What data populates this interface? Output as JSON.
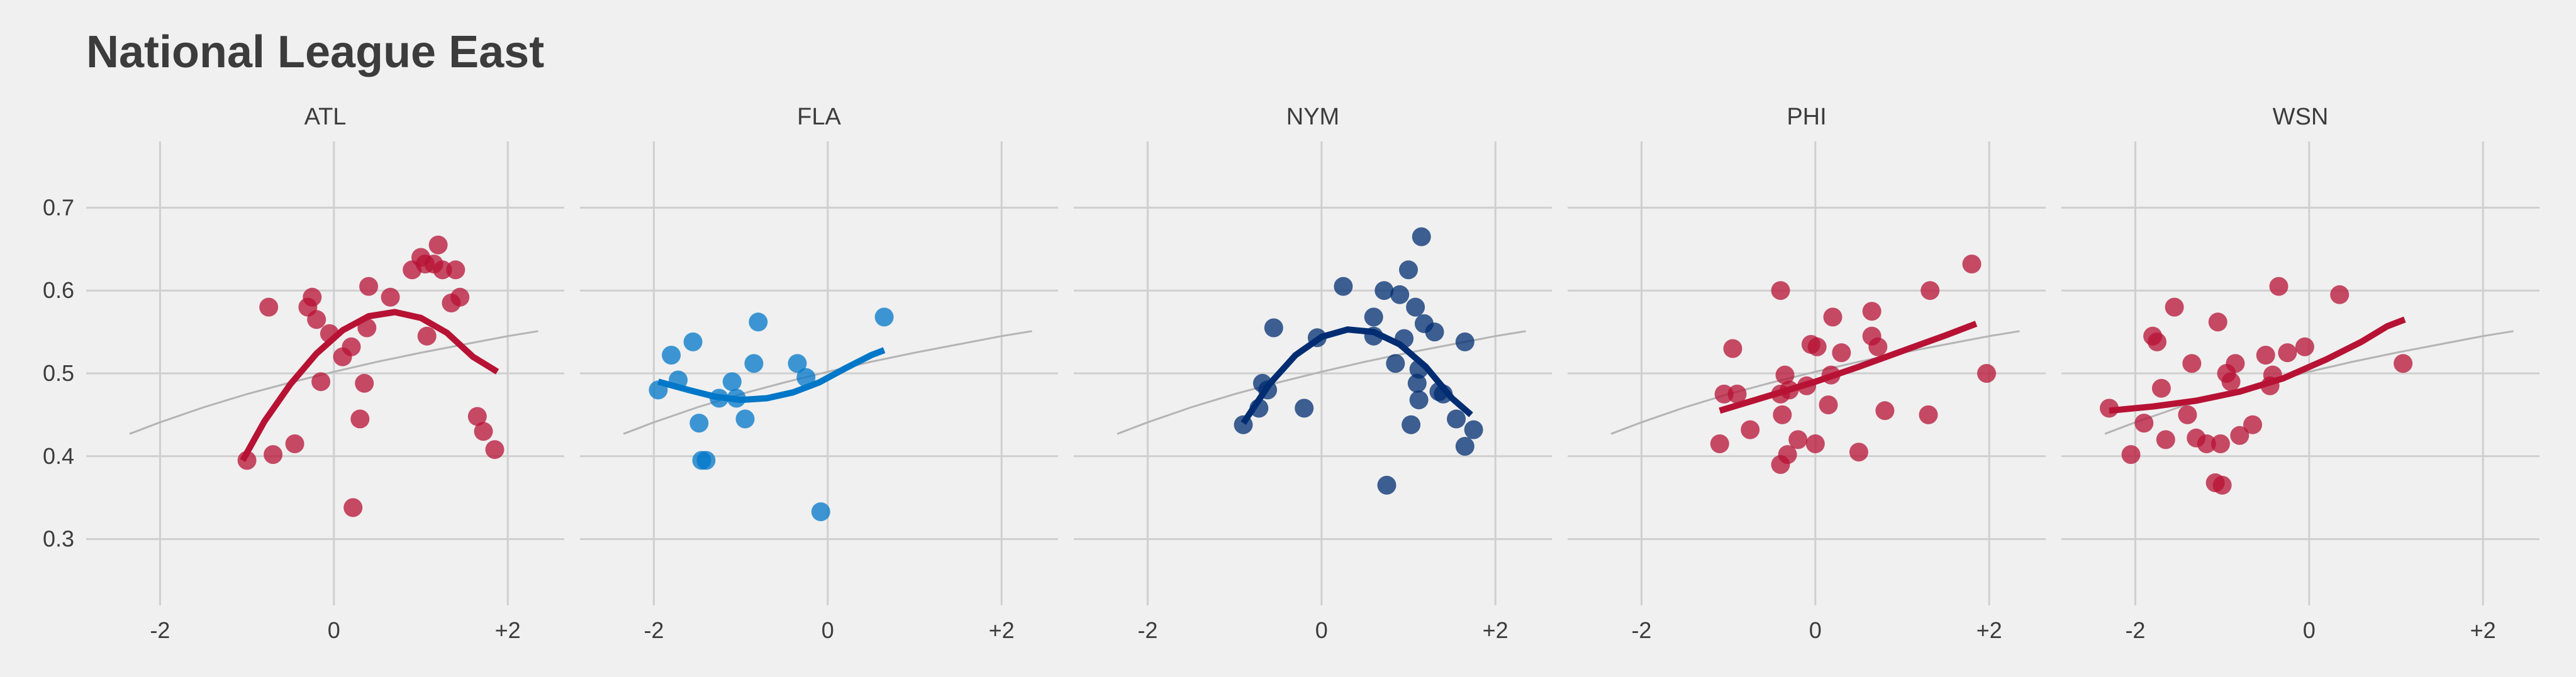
{
  "title": "National League East",
  "chart_data": {
    "type": "scatter",
    "title": "National League East",
    "xlabel": "",
    "ylabel": "",
    "x_ticks": [
      -2,
      0,
      2
    ],
    "x_tick_labels": [
      "-2",
      "0",
      "+2"
    ],
    "y_ticks": [
      0.3,
      0.4,
      0.5,
      0.6,
      0.7
    ],
    "y_tick_labels": [
      "0.3",
      "0.4",
      "0.5",
      "0.6",
      "0.7"
    ],
    "xlim": [
      -2.85,
      2.65
    ],
    "ylim": [
      0.22,
      0.78
    ],
    "grid": true,
    "reference_curve": {
      "color": "#b4b4b4",
      "x": [
        -2.35,
        -2.0,
        -1.5,
        -1.0,
        -0.5,
        0.0,
        0.5,
        1.0,
        1.5,
        2.0,
        2.35
      ],
      "y": [
        0.427,
        0.441,
        0.459,
        0.475,
        0.489,
        0.502,
        0.514,
        0.525,
        0.535,
        0.545,
        0.551
      ]
    },
    "panels": [
      {
        "name": "ATL",
        "color": "#b71234",
        "points": [
          [
            -1.0,
            0.395
          ],
          [
            -0.75,
            0.58
          ],
          [
            -0.7,
            0.402
          ],
          [
            -0.45,
            0.415
          ],
          [
            -0.3,
            0.58
          ],
          [
            -0.25,
            0.592
          ],
          [
            -0.2,
            0.565
          ],
          [
            -0.15,
            0.49
          ],
          [
            -0.05,
            0.548
          ],
          [
            0.1,
            0.52
          ],
          [
            0.2,
            0.532
          ],
          [
            0.22,
            0.338
          ],
          [
            0.3,
            0.445
          ],
          [
            0.35,
            0.488
          ],
          [
            0.38,
            0.555
          ],
          [
            0.4,
            0.605
          ],
          [
            0.65,
            0.592
          ],
          [
            0.9,
            0.625
          ],
          [
            1.0,
            0.64
          ],
          [
            1.05,
            0.632
          ],
          [
            1.07,
            0.545
          ],
          [
            1.15,
            0.632
          ],
          [
            1.2,
            0.655
          ],
          [
            1.25,
            0.625
          ],
          [
            1.35,
            0.585
          ],
          [
            1.4,
            0.625
          ],
          [
            1.45,
            0.592
          ],
          [
            1.65,
            0.448
          ],
          [
            1.72,
            0.43
          ],
          [
            1.85,
            0.408
          ]
        ],
        "curve": {
          "x": [
            -1.05,
            -0.8,
            -0.5,
            -0.2,
            0.1,
            0.4,
            0.7,
            1.0,
            1.3,
            1.6,
            1.88
          ],
          "y": [
            0.395,
            0.442,
            0.487,
            0.524,
            0.552,
            0.569,
            0.574,
            0.567,
            0.549,
            0.52,
            0.502
          ]
        }
      },
      {
        "name": "FLA",
        "color": "#0077c8",
        "points": [
          [
            -1.95,
            0.48
          ],
          [
            -1.8,
            0.522
          ],
          [
            -1.72,
            0.492
          ],
          [
            -1.55,
            0.538
          ],
          [
            -1.48,
            0.44
          ],
          [
            -1.45,
            0.395
          ],
          [
            -1.4,
            0.395
          ],
          [
            -1.25,
            0.47
          ],
          [
            -1.1,
            0.49
          ],
          [
            -1.05,
            0.47
          ],
          [
            -0.95,
            0.445
          ],
          [
            -0.85,
            0.512
          ],
          [
            -0.8,
            0.562
          ],
          [
            -0.35,
            0.512
          ],
          [
            -0.25,
            0.495
          ],
          [
            -0.08,
            0.333
          ],
          [
            0.65,
            0.568
          ]
        ],
        "curve": {
          "x": [
            -1.95,
            -1.6,
            -1.3,
            -1.0,
            -0.7,
            -0.4,
            -0.1,
            0.2,
            0.5,
            0.65
          ],
          "y": [
            0.49,
            0.48,
            0.472,
            0.468,
            0.47,
            0.477,
            0.489,
            0.506,
            0.522,
            0.528
          ]
        }
      },
      {
        "name": "NYM",
        "color": "#002d72",
        "points": [
          [
            -0.9,
            0.438
          ],
          [
            -0.72,
            0.458
          ],
          [
            -0.68,
            0.488
          ],
          [
            -0.62,
            0.48
          ],
          [
            -0.55,
            0.555
          ],
          [
            -0.2,
            0.458
          ],
          [
            -0.05,
            0.543
          ],
          [
            0.25,
            0.605
          ],
          [
            0.6,
            0.568
          ],
          [
            0.6,
            0.545
          ],
          [
            0.72,
            0.6
          ],
          [
            0.75,
            0.365
          ],
          [
            0.85,
            0.512
          ],
          [
            0.9,
            0.595
          ],
          [
            0.95,
            0.542
          ],
          [
            1.0,
            0.625
          ],
          [
            1.03,
            0.438
          ],
          [
            1.08,
            0.58
          ],
          [
            1.1,
            0.488
          ],
          [
            1.12,
            0.468
          ],
          [
            1.12,
            0.505
          ],
          [
            1.15,
            0.665
          ],
          [
            1.18,
            0.56
          ],
          [
            1.3,
            0.55
          ],
          [
            1.35,
            0.478
          ],
          [
            1.4,
            0.475
          ],
          [
            1.55,
            0.445
          ],
          [
            1.65,
            0.538
          ],
          [
            1.65,
            0.412
          ],
          [
            1.75,
            0.432
          ]
        ],
        "curve": {
          "x": [
            -0.9,
            -0.6,
            -0.3,
            0.0,
            0.3,
            0.6,
            0.9,
            1.2,
            1.5,
            1.72
          ],
          "y": [
            0.44,
            0.487,
            0.522,
            0.544,
            0.553,
            0.55,
            0.535,
            0.508,
            0.47,
            0.45
          ]
        }
      },
      {
        "name": "PHI",
        "color": "#b71234",
        "points": [
          [
            -1.1,
            0.415
          ],
          [
            -1.05,
            0.475
          ],
          [
            -0.95,
            0.53
          ],
          [
            -0.9,
            0.475
          ],
          [
            -0.75,
            0.432
          ],
          [
            -0.4,
            0.6
          ],
          [
            -0.4,
            0.475
          ],
          [
            -0.4,
            0.39
          ],
          [
            -0.38,
            0.45
          ],
          [
            -0.35,
            0.498
          ],
          [
            -0.32,
            0.402
          ],
          [
            -0.3,
            0.48
          ],
          [
            -0.2,
            0.42
          ],
          [
            -0.1,
            0.485
          ],
          [
            -0.05,
            0.535
          ],
          [
            0.0,
            0.415
          ],
          [
            0.02,
            0.532
          ],
          [
            0.15,
            0.462
          ],
          [
            0.18,
            0.498
          ],
          [
            0.2,
            0.568
          ],
          [
            0.3,
            0.525
          ],
          [
            0.5,
            0.405
          ],
          [
            0.65,
            0.575
          ],
          [
            0.65,
            0.545
          ],
          [
            0.72,
            0.532
          ],
          [
            0.8,
            0.455
          ],
          [
            1.3,
            0.45
          ],
          [
            1.32,
            0.6
          ],
          [
            1.8,
            0.632
          ],
          [
            1.97,
            0.5
          ]
        ],
        "curve": {
          "x": [
            -1.1,
            -0.5,
            0.0,
            0.5,
            1.0,
            1.5,
            1.85
          ],
          "y": [
            0.455,
            0.474,
            0.49,
            0.508,
            0.527,
            0.546,
            0.56
          ]
        }
      },
      {
        "name": "WSN",
        "color": "#b71234",
        "points": [
          [
            -2.3,
            0.458
          ],
          [
            -2.05,
            0.402
          ],
          [
            -1.9,
            0.44
          ],
          [
            -1.8,
            0.545
          ],
          [
            -1.75,
            0.538
          ],
          [
            -1.7,
            0.482
          ],
          [
            -1.65,
            0.42
          ],
          [
            -1.55,
            0.58
          ],
          [
            -1.4,
            0.45
          ],
          [
            -1.35,
            0.512
          ],
          [
            -1.3,
            0.422
          ],
          [
            -1.18,
            0.415
          ],
          [
            -1.08,
            0.368
          ],
          [
            -1.05,
            0.562
          ],
          [
            -1.02,
            0.415
          ],
          [
            -1.0,
            0.365
          ],
          [
            -0.95,
            0.5
          ],
          [
            -0.9,
            0.49
          ],
          [
            -0.85,
            0.512
          ],
          [
            -0.8,
            0.425
          ],
          [
            -0.65,
            0.438
          ],
          [
            -0.5,
            0.522
          ],
          [
            -0.45,
            0.485
          ],
          [
            -0.42,
            0.498
          ],
          [
            -0.35,
            0.605
          ],
          [
            -0.25,
            0.525
          ],
          [
            -0.05,
            0.532
          ],
          [
            0.35,
            0.595
          ],
          [
            1.08,
            0.512
          ]
        ],
        "curve": {
          "x": [
            -2.3,
            -1.8,
            -1.3,
            -0.8,
            -0.3,
            0.2,
            0.6,
            0.9,
            1.1
          ],
          "y": [
            0.455,
            0.46,
            0.467,
            0.478,
            0.494,
            0.517,
            0.538,
            0.557,
            0.565
          ]
        }
      }
    ]
  }
}
